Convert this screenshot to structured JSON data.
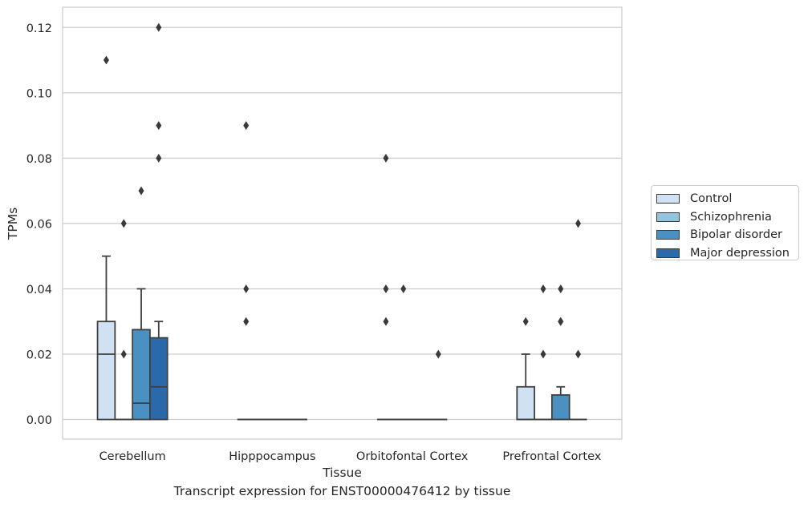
{
  "chart_data": {
    "type": "box",
    "title": "",
    "caption": "Transcript expression for ENST00000476412 by tissue",
    "xlabel": "Tissue",
    "ylabel": "TPMs",
    "ylim": [
      -0.006,
      0.1262
    ],
    "yticks": [
      0.0,
      0.02,
      0.04,
      0.06,
      0.08,
      0.1,
      0.12
    ],
    "ytick_labels": [
      "0.00",
      "0.02",
      "0.04",
      "0.06",
      "0.08",
      "0.10",
      "0.12"
    ],
    "grid": "horizontal",
    "legend_position": "right",
    "categories": [
      "Cerebellum",
      "Hipppocampus",
      "Orbitofontal Cortex",
      "Prefrontal Cortex"
    ],
    "series": [
      {
        "name": "Control",
        "color": "#cfe1f2",
        "boxes": [
          {
            "q1": 0.0,
            "median": 0.02,
            "q3": 0.03,
            "whisker_low": 0.0,
            "whisker_high": 0.05,
            "outliers": [
              0.11
            ]
          },
          {
            "q1": 0.0,
            "median": 0.0,
            "q3": 0.0,
            "whisker_low": 0.0,
            "whisker_high": 0.0,
            "outliers": [
              0.09,
              0.04,
              0.03
            ]
          },
          {
            "q1": 0.0,
            "median": 0.0,
            "q3": 0.0,
            "whisker_low": 0.0,
            "whisker_high": 0.0,
            "outliers": [
              0.08,
              0.04,
              0.03
            ]
          },
          {
            "q1": 0.0,
            "median": 0.0,
            "q3": 0.01,
            "whisker_low": 0.0,
            "whisker_high": 0.02,
            "outliers": [
              0.03
            ]
          }
        ]
      },
      {
        "name": "Schizophrenia",
        "color": "#93c4de",
        "boxes": [
          {
            "q1": 0.0,
            "median": 0.0,
            "q3": 0.0,
            "whisker_low": 0.0,
            "whisker_high": 0.0,
            "outliers": [
              0.06,
              0.02
            ]
          },
          {
            "q1": 0.0,
            "median": 0.0,
            "q3": 0.0,
            "whisker_low": 0.0,
            "whisker_high": 0.0,
            "outliers": []
          },
          {
            "q1": 0.0,
            "median": 0.0,
            "q3": 0.0,
            "whisker_low": 0.0,
            "whisker_high": 0.0,
            "outliers": [
              0.04
            ]
          },
          {
            "q1": 0.0,
            "median": 0.0,
            "q3": 0.0,
            "whisker_low": 0.0,
            "whisker_high": 0.0,
            "outliers": [
              0.04,
              0.02
            ]
          }
        ]
      },
      {
        "name": "Bipolar disorder",
        "color": "#4a91c2",
        "boxes": [
          {
            "q1": 0.0,
            "median": 0.005,
            "q3": 0.0275,
            "whisker_low": 0.0,
            "whisker_high": 0.04,
            "outliers": [
              0.07
            ]
          },
          {
            "q1": 0.0,
            "median": 0.0,
            "q3": 0.0,
            "whisker_low": 0.0,
            "whisker_high": 0.0,
            "outliers": []
          },
          {
            "q1": 0.0,
            "median": 0.0,
            "q3": 0.0,
            "whisker_low": 0.0,
            "whisker_high": 0.0,
            "outliers": []
          },
          {
            "q1": 0.0,
            "median": 0.0,
            "q3": 0.0075,
            "whisker_low": 0.0,
            "whisker_high": 0.01,
            "outliers": [
              0.04,
              0.03,
              0.03
            ]
          }
        ]
      },
      {
        "name": "Major depression",
        "color": "#2c69aa",
        "boxes": [
          {
            "q1": 0.0,
            "median": 0.01,
            "q3": 0.025,
            "whisker_low": 0.0,
            "whisker_high": 0.03,
            "outliers": [
              0.12,
              0.09,
              0.08
            ]
          },
          {
            "q1": 0.0,
            "median": 0.0,
            "q3": 0.0,
            "whisker_low": 0.0,
            "whisker_high": 0.0,
            "outliers": []
          },
          {
            "q1": 0.0,
            "median": 0.0,
            "q3": 0.0,
            "whisker_low": 0.0,
            "whisker_high": 0.0,
            "outliers": [
              0.02
            ]
          },
          {
            "q1": 0.0,
            "median": 0.0,
            "q3": 0.0,
            "whisker_low": 0.0,
            "whisker_high": 0.0,
            "outliers": [
              0.06,
              0.02
            ]
          }
        ]
      }
    ]
  }
}
